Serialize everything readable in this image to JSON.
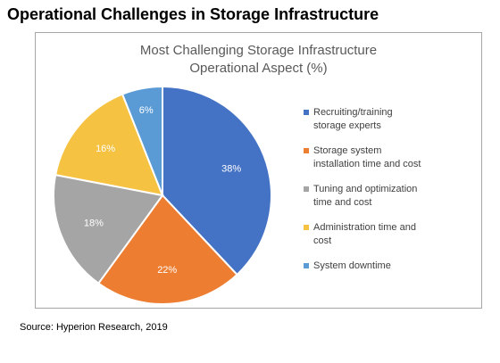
{
  "page": {
    "heading": "Operational Challenges in Storage Infrastructure",
    "source": "Source: Hyperion Research, 2019"
  },
  "chart_data": {
    "type": "pie",
    "title_lines": [
      "Most Challenging Storage Infrastructure",
      "Operational Aspect (%)"
    ],
    "legend_placement": "right",
    "start_angle_deg": 0,
    "direction": "clockwise",
    "slices": [
      {
        "label": "Recruiting/training storage experts",
        "legend_lines": [
          "Recruiting/training",
          "storage experts"
        ],
        "value": 38,
        "value_label": "38%",
        "color": "#4472c4"
      },
      {
        "label": "Storage system installation time and cost",
        "legend_lines": [
          "Storage system",
          "installation time and cost"
        ],
        "value": 22,
        "value_label": "22%",
        "color": "#ed7d31"
      },
      {
        "label": "Tuning and optimization time and cost",
        "legend_lines": [
          "Tuning and optimization",
          "time and cost"
        ],
        "value": 18,
        "value_label": "18%",
        "color": "#a5a5a5"
      },
      {
        "label": "Administration time and cost",
        "legend_lines": [
          "Administration time and",
          "cost"
        ],
        "value": 16,
        "value_label": "16%",
        "color": "#f5c242"
      },
      {
        "label": "System downtime",
        "legend_lines": [
          "System downtime"
        ],
        "value": 6,
        "value_label": "6%",
        "color": "#5b9bd5"
      }
    ]
  }
}
